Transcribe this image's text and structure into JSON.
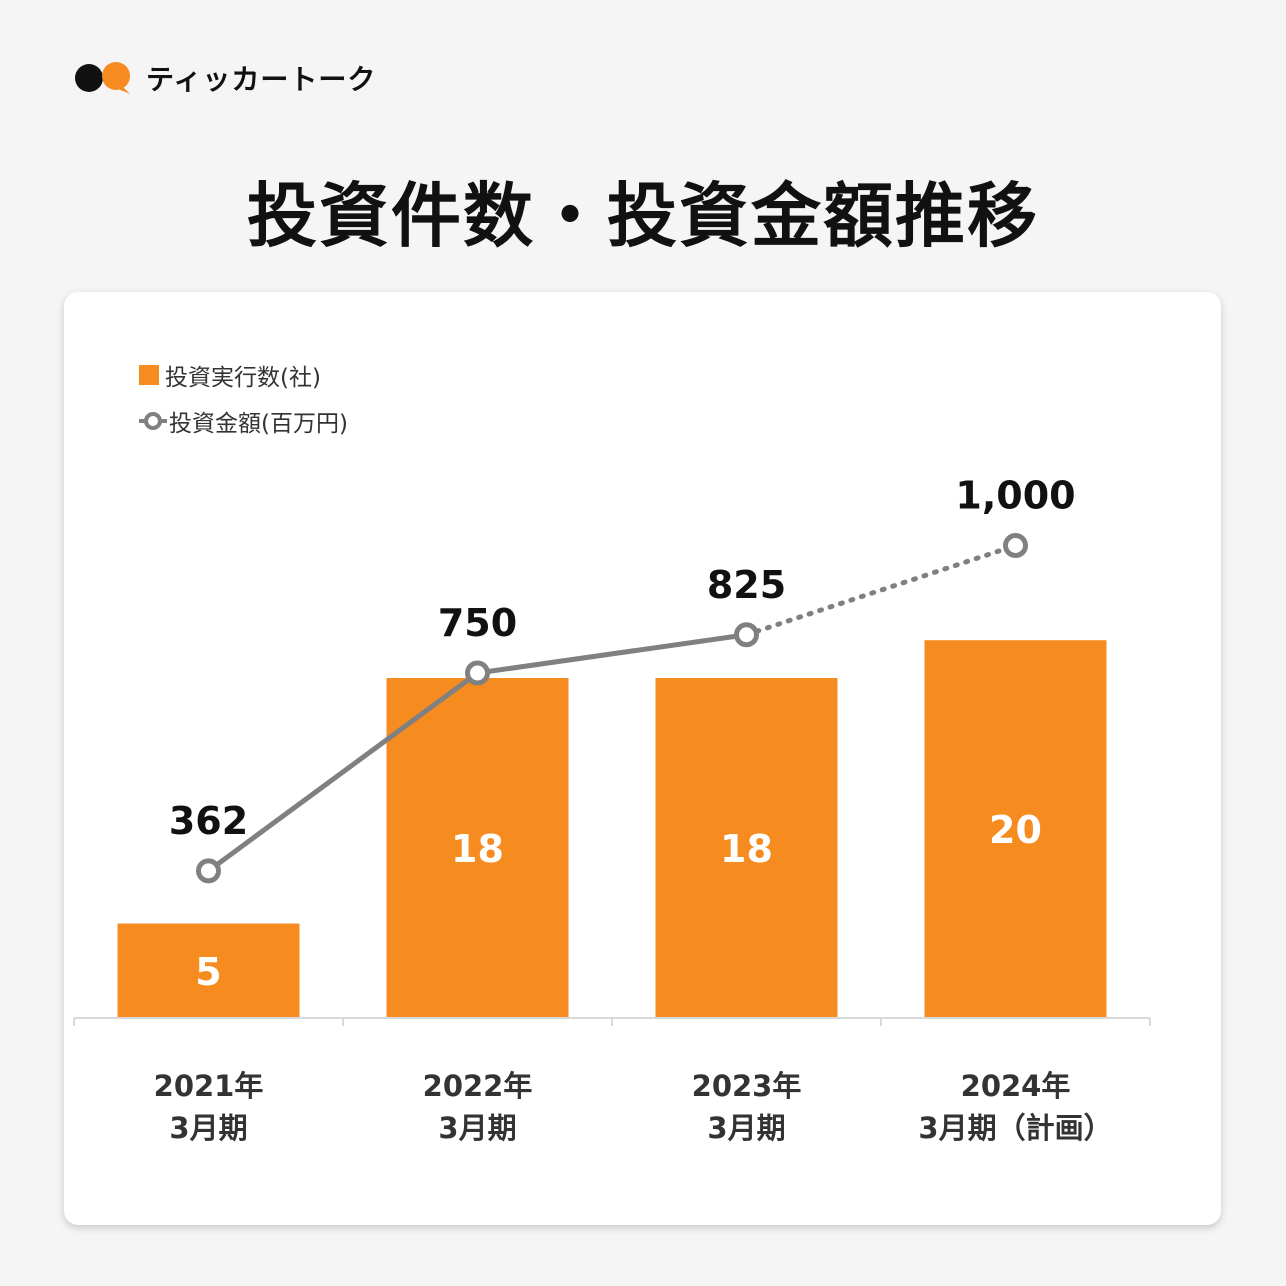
{
  "brand": {
    "name": "ティッカートーク"
  },
  "page": {
    "title": "投資件数・投資金額推移"
  },
  "colors": {
    "bar": "#f68b1f",
    "line": "#808080",
    "text": "#111111",
    "axis_text": "#333333",
    "background": "#f4f5f4",
    "card": "#ffffff"
  },
  "legend": {
    "bar_label": "投資実行数(社)",
    "line_label": "投資金額(百万円)"
  },
  "chart_data": {
    "type": "bar",
    "categories": [
      [
        "2021年",
        "3月期"
      ],
      [
        "2022年",
        "3月期"
      ],
      [
        "2023年",
        "3月期"
      ],
      [
        "2024年",
        "3月期（計画）"
      ]
    ],
    "series": [
      {
        "name": "投資実行数(社)",
        "type": "bar",
        "values": [
          5,
          18,
          18,
          20
        ],
        "labels": [
          "5",
          "18",
          "18",
          "20"
        ]
      },
      {
        "name": "投資金額(百万円)",
        "type": "line",
        "values": [
          362,
          750,
          825,
          1000
        ],
        "labels": [
          "362",
          "750",
          "825",
          "1,000"
        ],
        "projected_from_index": 2
      }
    ],
    "title": "投資件数・投資金額推移",
    "xlabel": "",
    "ylabel": "",
    "grid": false,
    "legend_position": "top-left"
  }
}
